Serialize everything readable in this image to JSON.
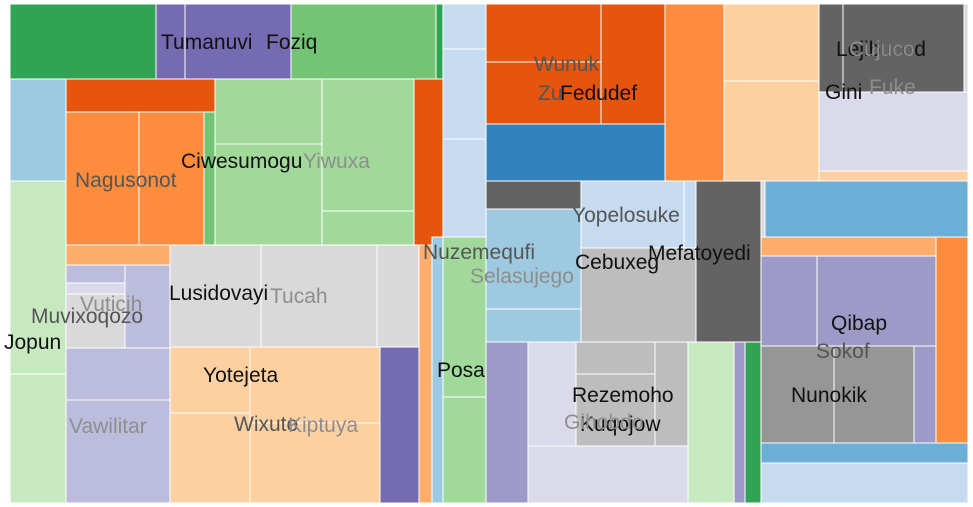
{
  "chart_data": {
    "type": "treemap",
    "title": "",
    "palette": {
      "green": "#31a354",
      "green_mid": "#74c476",
      "green_light": "#a1d99b",
      "green_pale": "#c7e9c0",
      "purple": "#756bb1",
      "purple_mid": "#9e9ac8",
      "purple_light": "#bcbddc",
      "purple_pale": "#dadaeb",
      "orange_dark": "#e6550d",
      "orange": "#fd8d3c",
      "orange_light": "#fdae6b",
      "orange_pale": "#fdd0a2",
      "blue_dark": "#3182bd",
      "blue": "#6baed6",
      "blue_light": "#9ecae1",
      "blue_pale": "#c6dbef",
      "gray_dark": "#636363",
      "gray": "#969696",
      "gray_light": "#bdbdbd",
      "gray_pale": "#d9d9d9"
    },
    "labels": [
      {
        "text": "Tumanuvi",
        "color": "dark"
      },
      {
        "text": "Foziq",
        "color": "dark"
      },
      {
        "text": "Nagusonot",
        "color": "muted"
      },
      {
        "text": "Ciwesumogu",
        "color": "dark"
      },
      {
        "text": "Yiwuxa",
        "color": "faint"
      },
      {
        "text": "Vuticih",
        "color": "faint"
      },
      {
        "text": "Muvixoqozo",
        "color": "muted"
      },
      {
        "text": "Jopun",
        "color": "dark"
      },
      {
        "text": "Vawilitar",
        "color": "faint"
      },
      {
        "text": "Lusidovayi",
        "color": "dark"
      },
      {
        "text": "Tucah",
        "color": "faint"
      },
      {
        "text": "Yotejeta",
        "color": "dark"
      },
      {
        "text": "Wixuto",
        "color": "muted"
      },
      {
        "text": "Kiptuya",
        "color": "faint"
      },
      {
        "text": "Nuzemequfi",
        "color": "muted"
      },
      {
        "text": "Posa",
        "color": "dark"
      },
      {
        "text": "Wunuk",
        "color": "muted"
      },
      {
        "text": "Zu",
        "color": "muted"
      },
      {
        "text": "Fedudef",
        "color": "dark"
      },
      {
        "text": "Lejibucod",
        "color": "dark"
      },
      {
        "text": "Cujuco",
        "color": "faint"
      },
      {
        "text": "Gini",
        "color": "dark"
      },
      {
        "text": "Fuke",
        "color": "faint"
      },
      {
        "text": "Yopelosuke",
        "color": "muted"
      },
      {
        "text": "Selasujego",
        "color": "faint"
      },
      {
        "text": "Cebuxeg",
        "color": "dark"
      },
      {
        "text": "Mefatoyedi",
        "color": "dark"
      },
      {
        "text": "Qibap",
        "color": "dark"
      },
      {
        "text": "Sokof",
        "color": "muted"
      },
      {
        "text": "Nunokik",
        "color": "dark"
      },
      {
        "text": "Rezemoho",
        "color": "dark"
      },
      {
        "text": "Kuqojow",
        "color": "dark"
      },
      {
        "text": "Gihobdo",
        "color": "faint"
      }
    ]
  }
}
